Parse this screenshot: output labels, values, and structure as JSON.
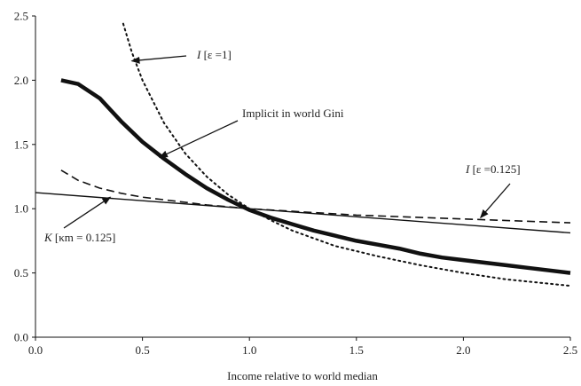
{
  "chart_data": {
    "type": "line",
    "title": "",
    "xlabel": "Income relative to world median",
    "ylabel": "",
    "xlim": [
      0,
      2.5
    ],
    "ylim": [
      0,
      2.5
    ],
    "xticks": [
      "0.0",
      "0.5",
      "1.0",
      "1.5",
      "2.0",
      "2.5"
    ],
    "yticks": [
      "0.0",
      "0.5",
      "1.0",
      "1.5",
      "2.0",
      "2.5"
    ],
    "grid": false,
    "legend": "none",
    "series": [
      {
        "style": "thick-solid",
        "color": "#111111",
        "x": [
          0.12,
          0.2,
          0.3,
          0.4,
          0.5,
          0.6,
          0.7,
          0.8,
          0.9,
          1.0,
          1.1,
          1.2,
          1.3,
          1.4,
          1.5,
          1.6,
          1.7,
          1.8,
          1.9,
          2.0,
          2.1,
          2.2,
          2.3,
          2.4,
          2.5
        ],
        "values": [
          2.0,
          1.97,
          1.86,
          1.68,
          1.52,
          1.39,
          1.27,
          1.16,
          1.07,
          0.99,
          0.93,
          0.88,
          0.83,
          0.79,
          0.75,
          0.72,
          0.69,
          0.65,
          0.62,
          0.6,
          0.58,
          0.56,
          0.54,
          0.52,
          0.5
        ]
      },
      {
        "style": "dotted",
        "color": "#111111",
        "x": [
          0.41,
          0.45,
          0.5,
          0.6,
          0.7,
          0.8,
          0.9,
          1.0,
          1.1,
          1.2,
          1.4,
          1.6,
          1.8,
          2.0,
          2.2,
          2.5
        ],
        "values": [
          2.44,
          2.22,
          2.0,
          1.67,
          1.43,
          1.25,
          1.11,
          1.0,
          0.91,
          0.83,
          0.71,
          0.63,
          0.56,
          0.5,
          0.45,
          0.4
        ]
      },
      {
        "style": "dashed",
        "color": "#111111",
        "x": [
          0.12,
          0.2,
          0.3,
          0.4,
          0.5,
          0.6,
          0.8,
          1.0,
          1.2,
          1.5,
          2.0,
          2.5
        ],
        "values": [
          1.3,
          1.22,
          1.16,
          1.12,
          1.09,
          1.07,
          1.03,
          1.0,
          0.98,
          0.95,
          0.92,
          0.89
        ]
      },
      {
        "style": "thin-solid",
        "color": "#111111",
        "x": [
          0.0,
          0.5,
          1.0,
          1.5,
          2.0,
          2.5
        ],
        "values": [
          1.125,
          1.0625,
          1.0,
          0.9375,
          0.875,
          0.8125
        ]
      }
    ],
    "annotations": [
      {
        "italic": "I",
        "text": " [ε =1]",
        "target": [
          0.45,
          2.15
        ]
      },
      {
        "italic": "",
        "text": "Implicit in world Gini",
        "target": [
          0.58,
          1.4
        ]
      },
      {
        "italic": "I",
        "text": " [ε =0.125]",
        "target": [
          2.08,
          0.93
        ]
      },
      {
        "italic": "K",
        "text": " [κm = 0.125]",
        "target": [
          0.35,
          1.09
        ]
      }
    ]
  }
}
